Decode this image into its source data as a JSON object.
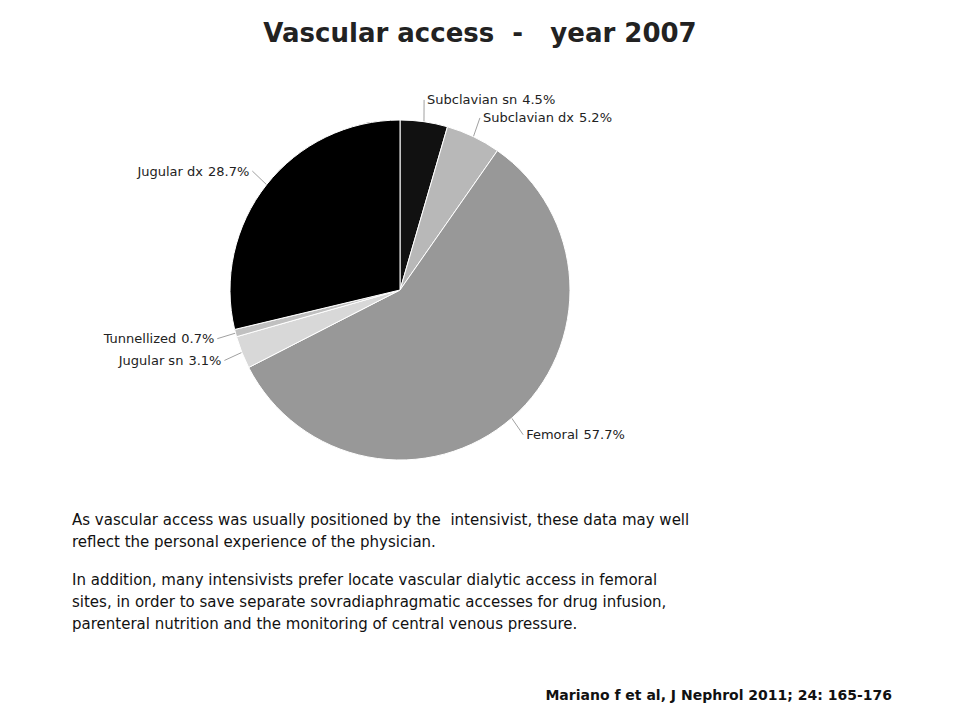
{
  "chart_data": {
    "type": "pie",
    "title": "Vascular access  -   year 2007",
    "categories": [
      "Subclavian sn",
      "Subclavian dx",
      "Femoral",
      "Jugular sn",
      "Tunnellized",
      "Jugular dx"
    ],
    "values": [
      4.5,
      5.2,
      57.7,
      3.1,
      0.7,
      28.7
    ],
    "value_labels": [
      "4.5%",
      "5.2%",
      "57.7%",
      "3.1%",
      "0.7%",
      "28.7%"
    ],
    "colors": [
      "#111111",
      "#b8b8b8",
      "#989898",
      "#d8d8d8",
      "#c0c0c0",
      "#000000"
    ],
    "data_labels": true,
    "annotations": [
      "As vascular access was usually positioned by the  intensivist, these data may well\nreflect the personal experience of the physician.",
      "In addition, many intensivists prefer locate vascular dialytic access in femoral\nsites, in order to save separate sovradiaphragmatic accesses for drug infusion,\nparenteral nutrition and the monitoring of central venous pressure.",
      "Mariano f et al, J Nephrol 2011; 24: 165-176"
    ]
  }
}
